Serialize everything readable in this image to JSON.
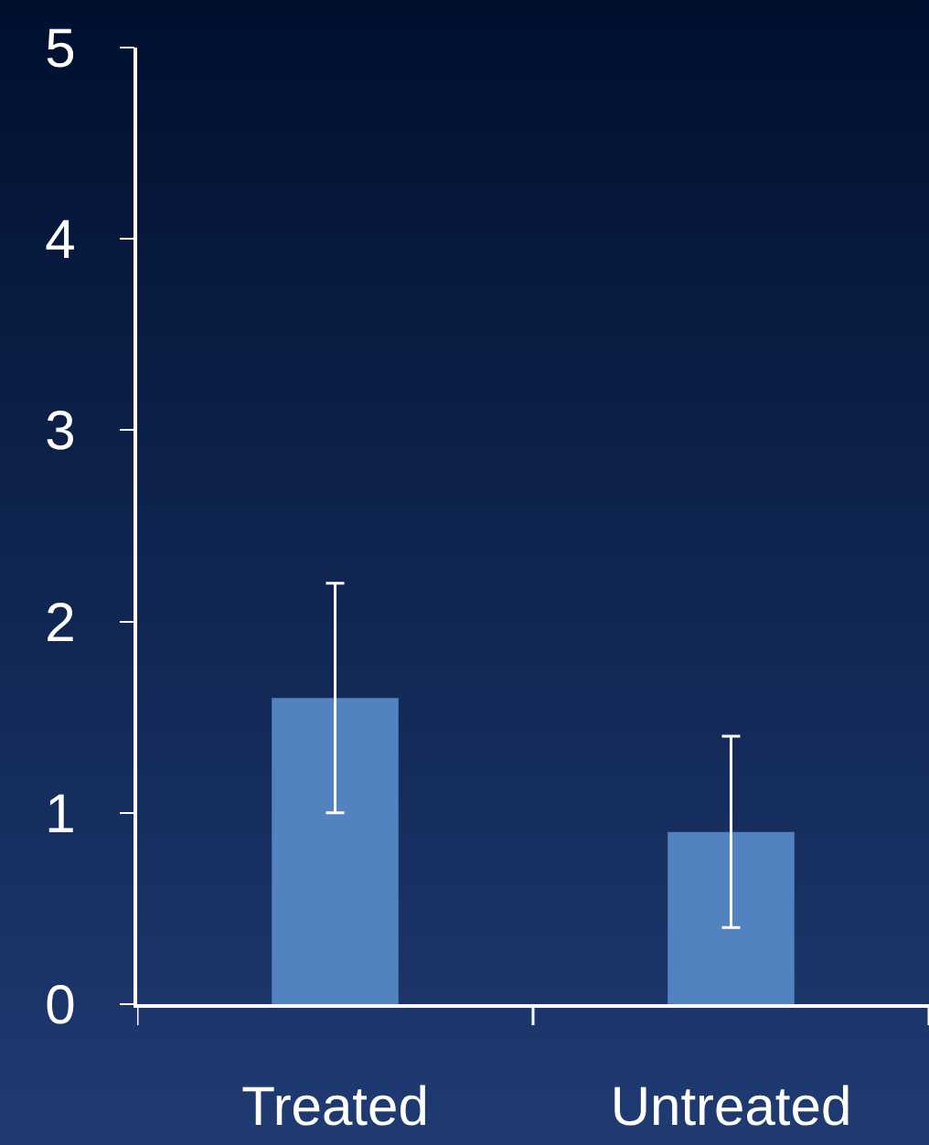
{
  "chart_data": {
    "type": "bar",
    "categories": [
      "Treated",
      "Untreated"
    ],
    "values": [
      1.6,
      0.9
    ],
    "color": "#5282bf",
    "errors": [
      [
        1.0,
        2.2
      ],
      [
        0.4,
        1.4
      ]
    ],
    "ylim": [
      0,
      5
    ],
    "yticks": [
      0,
      1,
      2,
      3,
      4,
      5
    ],
    "grid": false
  }
}
